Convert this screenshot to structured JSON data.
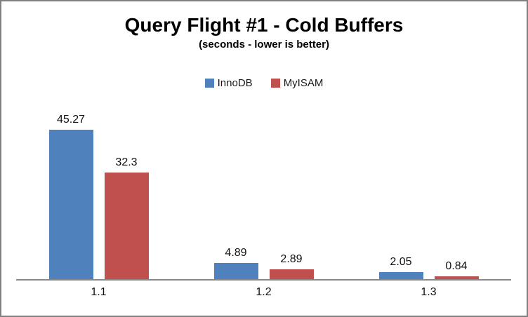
{
  "chart_data": {
    "type": "bar",
    "title": "Query Flight #1 - Cold Buffers",
    "subtitle": "(seconds - lower is better)",
    "categories": [
      "1.1",
      "1.2",
      "1.3"
    ],
    "series": [
      {
        "name": "InnoDB",
        "color": "#4f81bd",
        "values": [
          45.27,
          4.89,
          2.05
        ]
      },
      {
        "name": "MyISAM",
        "color": "#c0504d",
        "values": [
          32.3,
          2.89,
          0.84
        ]
      }
    ],
    "ylim": [
      0,
      50
    ],
    "grid": false,
    "y_axis_visible": false,
    "legend_position": "top",
    "axis_line_color": "#898989",
    "border_color": "#808080",
    "background_color": "#ffffff",
    "text_color": "#000000"
  }
}
